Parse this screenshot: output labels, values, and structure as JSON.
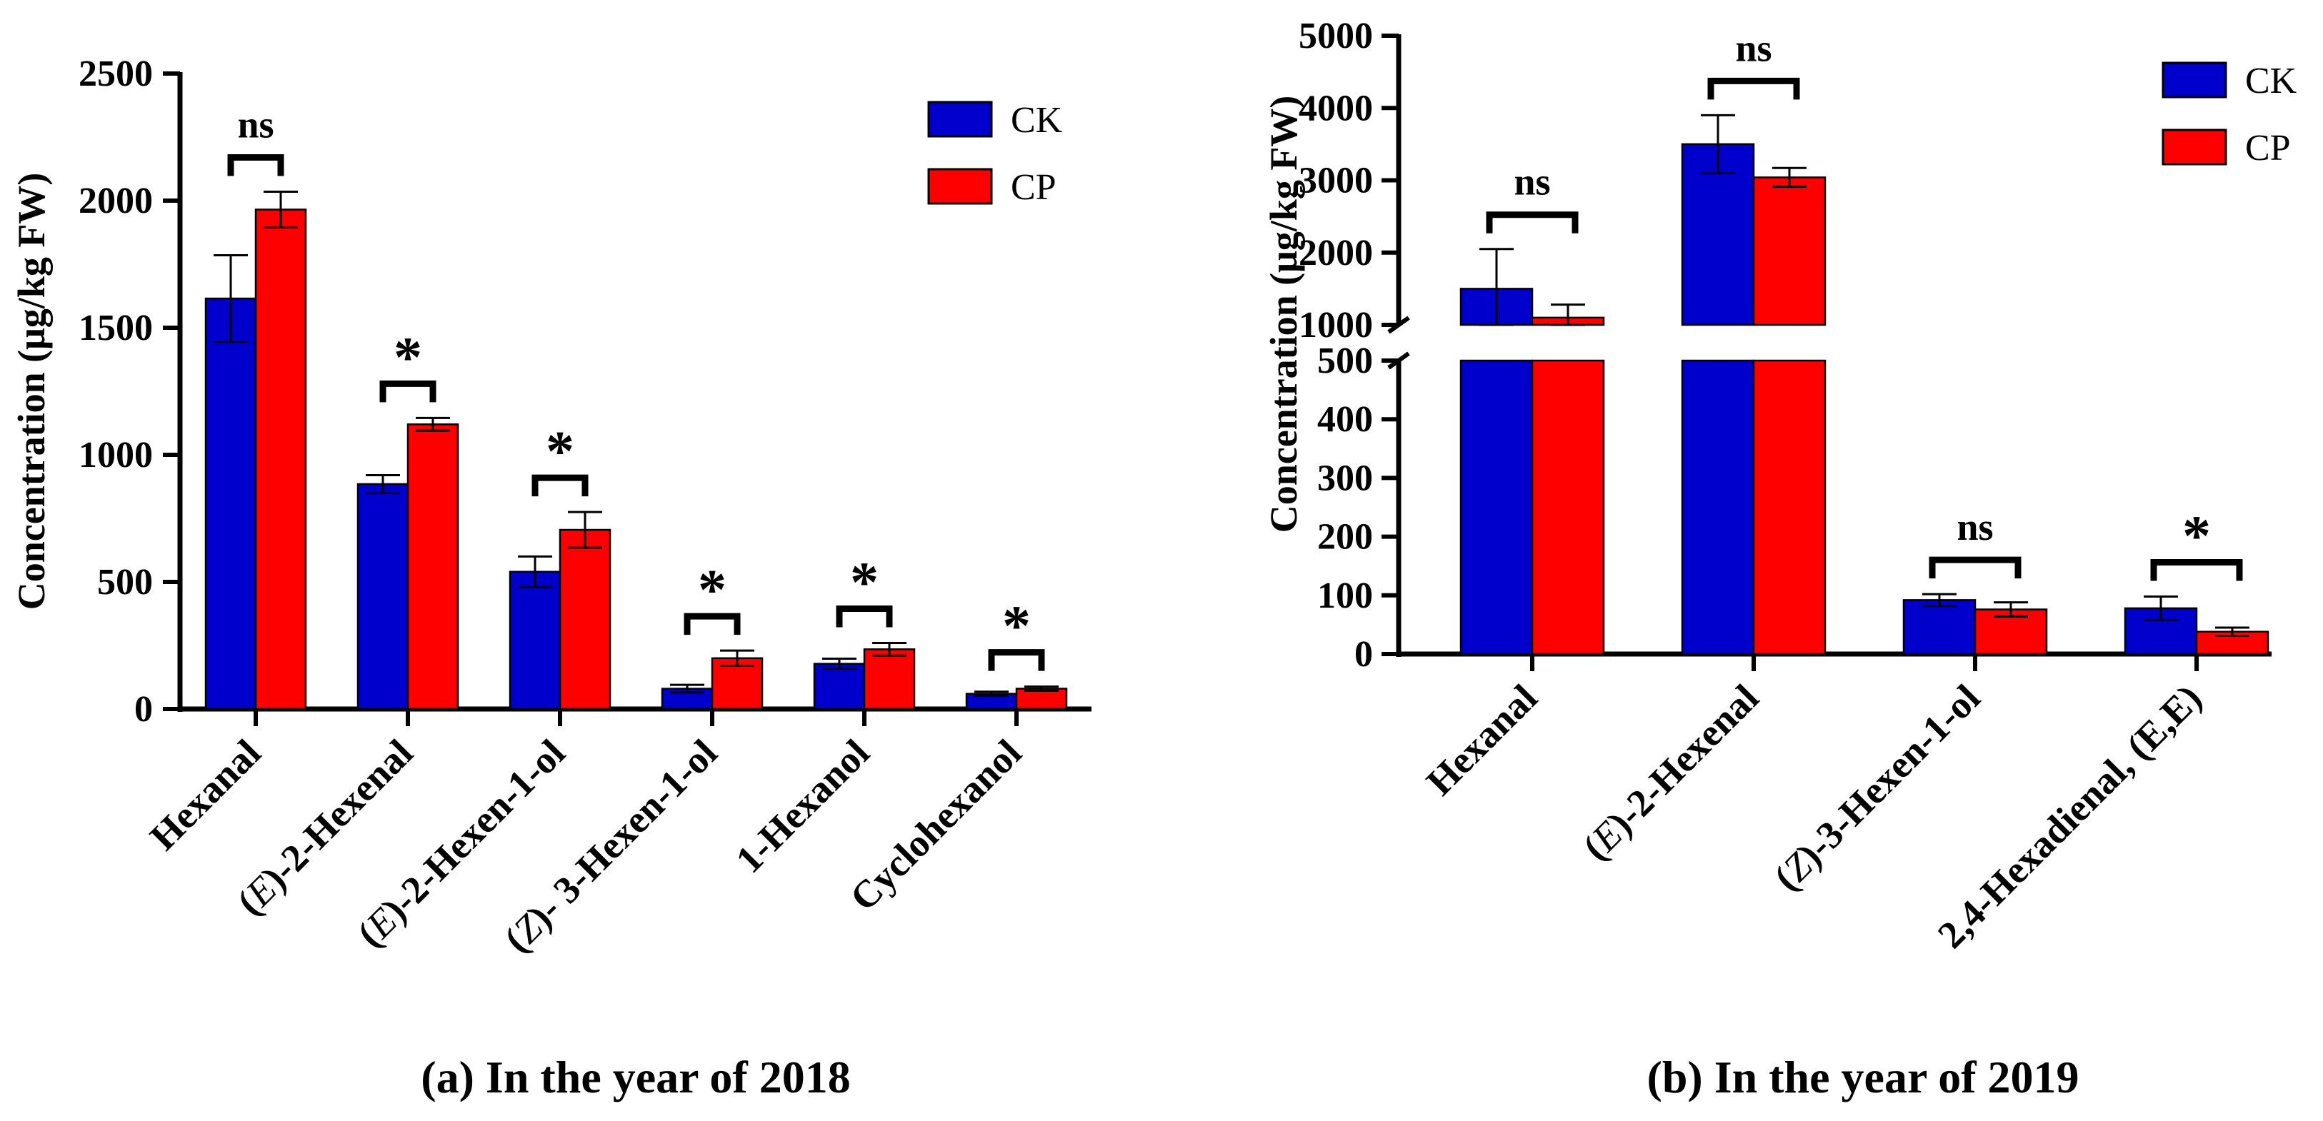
{
  "colors": {
    "CK": "#0000cc",
    "CP": "#ff0000",
    "axis": "#000000"
  },
  "chart_data": [
    {
      "type": "bar",
      "caption": "(a) In the year of 2018",
      "ylabel": "Concentration (μg/kg FW)",
      "ylim": [
        0,
        2500
      ],
      "yticks": [
        "0",
        "500",
        "1000",
        "1500",
        "2000",
        "2500"
      ],
      "legend": [
        "CK",
        "CP"
      ],
      "legend_position": "top-right",
      "categories": [
        {
          "prefix": "",
          "italic": "",
          "rest": "Hexanal"
        },
        {
          "prefix": "(",
          "italic": "E",
          "rest": ")-2-Hexenal"
        },
        {
          "prefix": "(",
          "italic": "E",
          "rest": ")-2-Hexen-1-ol"
        },
        {
          "prefix": "(",
          "italic": "Z",
          "rest": ")- 3-Hexen-1-ol"
        },
        {
          "prefix": "",
          "italic": "",
          "rest": "1-Hexanol"
        },
        {
          "prefix": "",
          "italic": "",
          "rest": "Cyclohexanol"
        }
      ],
      "series": [
        {
          "name": "CK",
          "values": [
            1615,
            885,
            540,
            80,
            178,
            60
          ],
          "errors": [
            170,
            35,
            60,
            15,
            20,
            8
          ]
        },
        {
          "name": "CP",
          "values": [
            1965,
            1120,
            705,
            200,
            235,
            80
          ],
          "errors": [
            70,
            25,
            70,
            30,
            25,
            8
          ]
        }
      ],
      "significance": [
        "ns",
        "*",
        "*",
        "*",
        "*",
        "*"
      ]
    },
    {
      "type": "bar",
      "caption": "(b) In the year of 2019",
      "ylabel": "Concentration (μg/kg FW)",
      "axis_break": [
        500,
        1000
      ],
      "ylim_lower": [
        0,
        500
      ],
      "ylim_upper": [
        1000,
        5000
      ],
      "yticks_lower": [
        "0",
        "100",
        "200",
        "300",
        "400",
        "500"
      ],
      "yticks_upper": [
        "1000",
        "2000",
        "3000",
        "4000",
        "5000"
      ],
      "legend": [
        "CK",
        "CP"
      ],
      "legend_position": "top-right",
      "categories": [
        {
          "prefix": "",
          "italic": "",
          "rest": "Hexanal"
        },
        {
          "prefix": "(",
          "italic": "E",
          "rest": ")-2-Hexenal"
        },
        {
          "prefix": "(",
          "italic": "Z",
          "rest": ")-3-Hexen-1-ol"
        },
        {
          "prefix": "",
          "italic": "",
          "rest": "2,4-Hexadienal, (E,E)"
        }
      ],
      "series": [
        {
          "name": "CK",
          "values": [
            1500,
            3500,
            92,
            78
          ],
          "errors": [
            550,
            400,
            10,
            20
          ]
        },
        {
          "name": "CP",
          "values": [
            1100,
            3040,
            76,
            38
          ],
          "errors": [
            180,
            130,
            12,
            7
          ]
        }
      ],
      "significance": [
        "ns",
        "ns",
        "ns",
        "*"
      ]
    }
  ]
}
